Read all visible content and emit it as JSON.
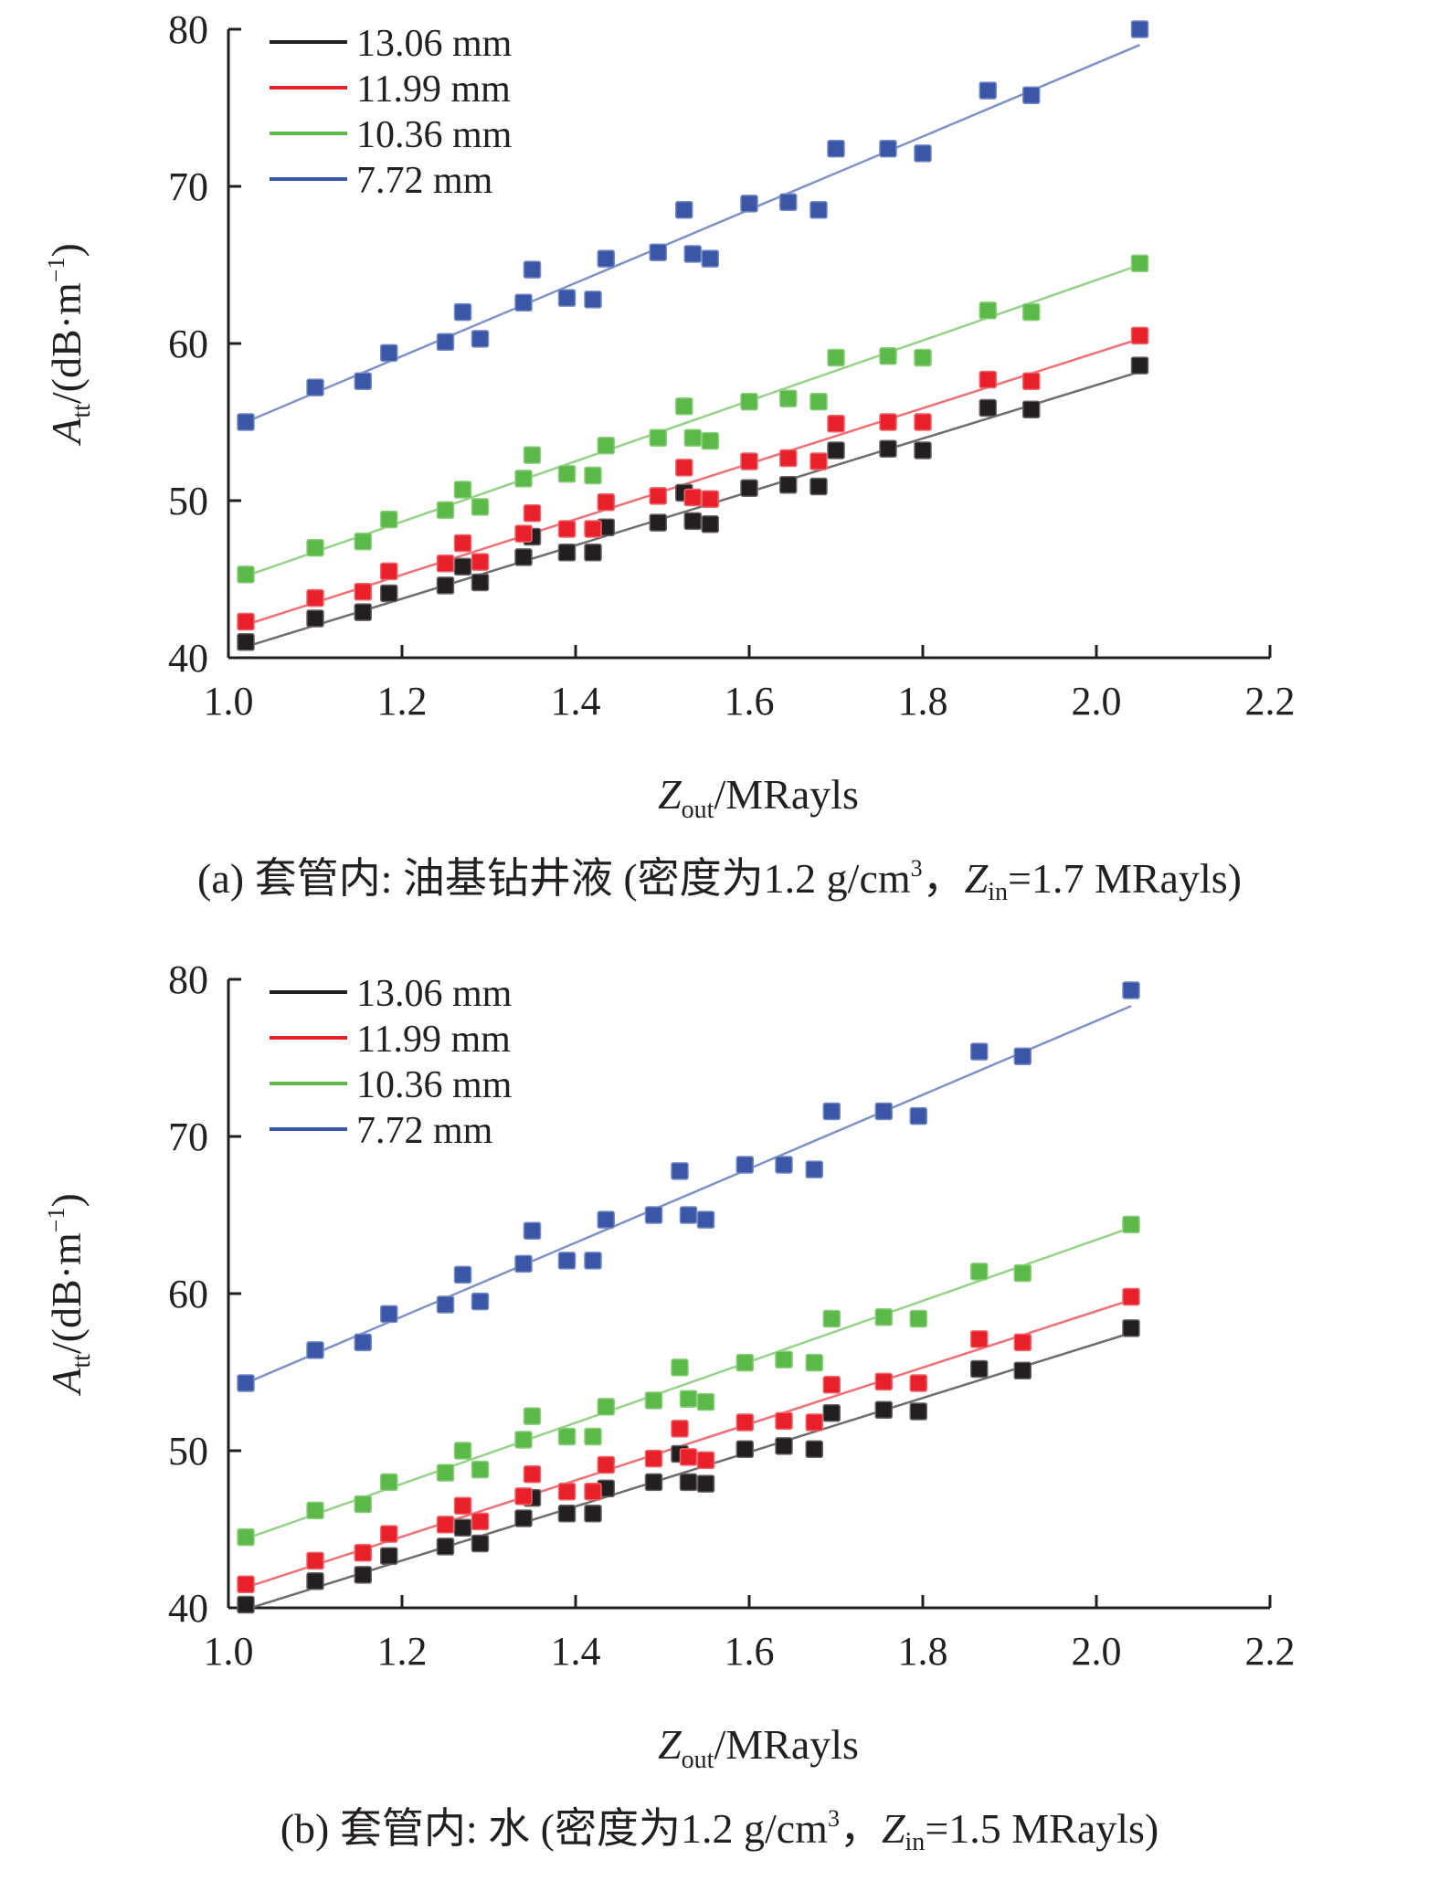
{
  "chart_data": [
    {
      "type": "scatter",
      "panel": "a",
      "ylabel_var": "A",
      "ylabel_sub": "tt",
      "ylabel_unit": "/(dB·m",
      "ylabel_sup": "−1",
      "ylabel_close": ")",
      "xlabel_var": "Z",
      "xlabel_sub": "out",
      "xlabel_unit": "/MRayls",
      "xlim": [
        1.0,
        2.2
      ],
      "ylim": [
        40,
        80
      ],
      "xticks": [
        "1.0",
        "1.2",
        "1.4",
        "1.6",
        "1.8",
        "2.0",
        "2.2"
      ],
      "yticks": [
        "40",
        "50",
        "60",
        "70",
        "80"
      ],
      "legend_position": "top-left",
      "caption": {
        "prefix": "(a) 套管内: 油基钻井液 (密度为1.2 g/cm",
        "sup": "3",
        "mid": "，",
        "z": "Z",
        "z_sub": "in",
        "suffix": "=1.7 MRayls)"
      },
      "series": [
        {
          "name": "13.06 mm",
          "color": "#231f20",
          "x": [
            1.02,
            1.1,
            1.155,
            1.185,
            1.25,
            1.27,
            1.29,
            1.34,
            1.35,
            1.39,
            1.42,
            1.435,
            1.495,
            1.525,
            1.535,
            1.555,
            1.6,
            1.645,
            1.68,
            1.7,
            1.76,
            1.8,
            1.875,
            1.925,
            2.05
          ],
          "y": [
            41.0,
            42.5,
            42.9,
            44.1,
            44.6,
            45.8,
            44.8,
            46.4,
            47.7,
            46.7,
            46.7,
            48.3,
            48.6,
            50.5,
            48.7,
            48.5,
            50.8,
            51.0,
            50.9,
            53.2,
            53.3,
            53.2,
            55.9,
            55.8,
            58.6
          ],
          "fit": [
            [
              1.02,
              40.7
            ],
            [
              2.05,
              58.2
            ]
          ]
        },
        {
          "name": "11.99 mm",
          "color": "#e8202a",
          "x": [
            1.02,
            1.1,
            1.155,
            1.185,
            1.25,
            1.27,
            1.29,
            1.34,
            1.35,
            1.39,
            1.42,
            1.435,
            1.495,
            1.525,
            1.535,
            1.555,
            1.6,
            1.645,
            1.68,
            1.7,
            1.76,
            1.8,
            1.875,
            1.925,
            2.05
          ],
          "y": [
            42.3,
            43.8,
            44.2,
            45.5,
            46.0,
            47.3,
            46.1,
            47.9,
            49.2,
            48.2,
            48.2,
            49.9,
            50.3,
            52.1,
            50.2,
            50.1,
            52.5,
            52.7,
            52.5,
            54.9,
            55.0,
            55.0,
            57.7,
            57.6,
            60.5
          ],
          "fit": [
            [
              1.02,
              42.1
            ],
            [
              2.05,
              60.3
            ]
          ]
        },
        {
          "name": "10.36 mm",
          "color": "#5ab947",
          "x": [
            1.02,
            1.1,
            1.155,
            1.185,
            1.25,
            1.27,
            1.29,
            1.34,
            1.35,
            1.39,
            1.42,
            1.435,
            1.495,
            1.525,
            1.535,
            1.555,
            1.6,
            1.645,
            1.68,
            1.7,
            1.76,
            1.8,
            1.875,
            1.925,
            2.05
          ],
          "y": [
            45.3,
            47.0,
            47.4,
            48.8,
            49.4,
            50.7,
            49.6,
            51.4,
            52.9,
            51.7,
            51.6,
            53.5,
            54.0,
            56.0,
            54.0,
            53.8,
            56.3,
            56.5,
            56.3,
            59.1,
            59.2,
            59.1,
            62.1,
            62.0,
            65.1
          ],
          "fit": [
            [
              1.02,
              45.2
            ],
            [
              2.05,
              65.0
            ]
          ]
        },
        {
          "name": "7.72 mm",
          "color": "#3a57a7",
          "x": [
            1.02,
            1.1,
            1.155,
            1.185,
            1.25,
            1.27,
            1.29,
            1.34,
            1.35,
            1.39,
            1.42,
            1.435,
            1.495,
            1.525,
            1.535,
            1.555,
            1.6,
            1.645,
            1.68,
            1.7,
            1.76,
            1.8,
            1.875,
            1.925,
            2.05
          ],
          "y": [
            55.0,
            57.2,
            57.6,
            59.4,
            60.1,
            62.0,
            60.3,
            62.6,
            64.7,
            62.9,
            62.8,
            65.4,
            65.8,
            68.5,
            65.7,
            65.4,
            68.9,
            69.0,
            68.5,
            72.4,
            72.4,
            72.1,
            76.1,
            75.8,
            80.0
          ],
          "fit": [
            [
              1.02,
              55.0
            ],
            [
              2.05,
              79.0
            ]
          ]
        }
      ]
    },
    {
      "type": "scatter",
      "panel": "b",
      "ylabel_var": "A",
      "ylabel_sub": "tt",
      "ylabel_unit": "/(dB·m",
      "ylabel_sup": "−1",
      "ylabel_close": ")",
      "xlabel_var": "Z",
      "xlabel_sub": "out",
      "xlabel_unit": "/MRayls",
      "xlim": [
        1.0,
        2.2
      ],
      "ylim": [
        40,
        80
      ],
      "xticks": [
        "1.0",
        "1.2",
        "1.4",
        "1.6",
        "1.8",
        "2.0",
        "2.2"
      ],
      "yticks": [
        "40",
        "50",
        "60",
        "70",
        "80"
      ],
      "legend_position": "top-left",
      "caption": {
        "prefix": "(b) 套管内: 水 (密度为1.2 g/cm",
        "sup": "3",
        "mid": "，",
        "z": "Z",
        "z_sub": "in",
        "suffix": "=1.5 MRayls)"
      },
      "series": [
        {
          "name": "13.06 mm",
          "color": "#231f20",
          "x": [
            1.02,
            1.1,
            1.155,
            1.185,
            1.25,
            1.27,
            1.29,
            1.34,
            1.35,
            1.39,
            1.42,
            1.435,
            1.49,
            1.52,
            1.53,
            1.55,
            1.595,
            1.64,
            1.675,
            1.695,
            1.755,
            1.795,
            1.865,
            1.915,
            2.04
          ],
          "y": [
            40.2,
            41.7,
            42.1,
            43.3,
            43.9,
            45.1,
            44.1,
            45.7,
            47.0,
            46.0,
            46.0,
            47.6,
            48.0,
            49.8,
            48.0,
            47.9,
            50.1,
            50.3,
            50.1,
            52.4,
            52.6,
            52.5,
            55.2,
            55.1,
            57.8
          ],
          "fit": [
            [
              1.02,
              39.9
            ],
            [
              2.04,
              57.5
            ]
          ]
        },
        {
          "name": "11.99 mm",
          "color": "#e8202a",
          "x": [
            1.02,
            1.1,
            1.155,
            1.185,
            1.25,
            1.27,
            1.29,
            1.34,
            1.35,
            1.39,
            1.42,
            1.435,
            1.49,
            1.52,
            1.53,
            1.55,
            1.595,
            1.64,
            1.675,
            1.695,
            1.755,
            1.795,
            1.865,
            1.915,
            2.04
          ],
          "y": [
            41.5,
            43.0,
            43.5,
            44.7,
            45.3,
            46.5,
            45.5,
            47.1,
            48.5,
            47.4,
            47.4,
            49.1,
            49.5,
            51.4,
            49.6,
            49.4,
            51.8,
            51.9,
            51.8,
            54.2,
            54.4,
            54.3,
            57.1,
            56.9,
            59.8
          ],
          "fit": [
            [
              1.02,
              41.3
            ],
            [
              2.04,
              59.6
            ]
          ]
        },
        {
          "name": "10.36 mm",
          "color": "#5ab947",
          "x": [
            1.02,
            1.1,
            1.155,
            1.185,
            1.25,
            1.27,
            1.29,
            1.34,
            1.35,
            1.39,
            1.42,
            1.435,
            1.49,
            1.52,
            1.53,
            1.55,
            1.595,
            1.64,
            1.675,
            1.695,
            1.755,
            1.795,
            1.865,
            1.915,
            2.04
          ],
          "y": [
            44.5,
            46.2,
            46.6,
            48.0,
            48.6,
            50.0,
            48.8,
            50.7,
            52.2,
            50.9,
            50.9,
            52.8,
            53.2,
            55.3,
            53.3,
            53.1,
            55.6,
            55.8,
            55.6,
            58.4,
            58.5,
            58.4,
            61.4,
            61.3,
            64.4
          ],
          "fit": [
            [
              1.02,
              44.4
            ],
            [
              2.04,
              64.2
            ]
          ]
        },
        {
          "name": "7.72 mm",
          "color": "#3a57a7",
          "x": [
            1.02,
            1.1,
            1.155,
            1.185,
            1.25,
            1.27,
            1.29,
            1.34,
            1.35,
            1.39,
            1.42,
            1.435,
            1.49,
            1.52,
            1.53,
            1.55,
            1.595,
            1.64,
            1.675,
            1.695,
            1.755,
            1.795,
            1.865,
            1.915,
            2.04
          ],
          "y": [
            54.3,
            56.4,
            56.9,
            58.7,
            59.3,
            61.2,
            59.5,
            61.9,
            64.0,
            62.1,
            62.1,
            64.7,
            65.0,
            67.8,
            65.0,
            64.7,
            68.2,
            68.2,
            67.9,
            71.6,
            71.6,
            71.3,
            75.4,
            75.1,
            79.3
          ],
          "fit": [
            [
              1.02,
              54.3
            ],
            [
              2.04,
              78.3
            ]
          ]
        }
      ]
    }
  ]
}
